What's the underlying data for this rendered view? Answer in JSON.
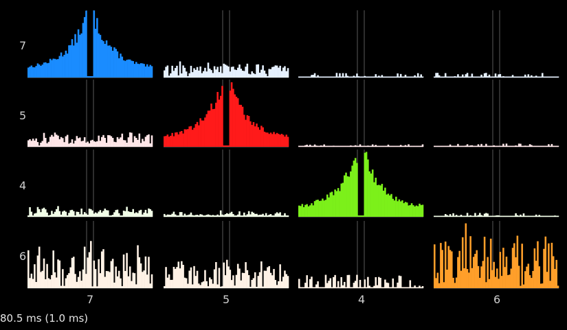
{
  "chart_data": {
    "type": "bar",
    "title": "",
    "units": [
      "7",
      "5",
      "4",
      "6"
    ],
    "colors": {
      "7_7": "#1a8cff",
      "5_5": "#ff1a1a",
      "4_4": "#7cf01a",
      "6_6": "#ff9f2a",
      "7_off": "#e6f1ff",
      "5_off": "#ffe6e8",
      "4_off": "#f2ffe8",
      "6_off": "#fff2e6"
    },
    "window": "80.5 ms (1.0 ms)",
    "bins_per_side": 40,
    "panels": [
      {
        "row": "7",
        "col": "7",
        "peak": 1.0,
        "shape": "peak",
        "noise": 0.15
      },
      {
        "row": "7",
        "col": "5",
        "peak": 0.25,
        "shape": "flat",
        "noise": 0.3
      },
      {
        "row": "7",
        "col": "4",
        "peak": 0.07,
        "shape": "sparse",
        "noise": 0.6
      },
      {
        "row": "7",
        "col": "6",
        "peak": 0.07,
        "shape": "sparse",
        "noise": 0.6
      },
      {
        "row": "5",
        "col": "7",
        "peak": 0.23,
        "shape": "flat",
        "noise": 0.35
      },
      {
        "row": "5",
        "col": "5",
        "peak": 1.0,
        "shape": "peak",
        "noise": 0.15
      },
      {
        "row": "5",
        "col": "4",
        "peak": 0.04,
        "shape": "sparse",
        "noise": 0.7
      },
      {
        "row": "5",
        "col": "6",
        "peak": 0.05,
        "shape": "sparse",
        "noise": 0.65
      },
      {
        "row": "4",
        "col": "7",
        "peak": 0.18,
        "shape": "flat",
        "noise": 0.55
      },
      {
        "row": "4",
        "col": "5",
        "peak": 0.1,
        "shape": "flat",
        "noise": 0.6
      },
      {
        "row": "4",
        "col": "4",
        "peak": 1.0,
        "shape": "peak",
        "noise": 0.18
      },
      {
        "row": "4",
        "col": "6",
        "peak": 0.06,
        "shape": "sparse",
        "noise": 0.7
      },
      {
        "row": "6",
        "col": "7",
        "peak": 0.75,
        "shape": "flat",
        "noise": 0.65
      },
      {
        "row": "6",
        "col": "5",
        "peak": 0.5,
        "shape": "flat",
        "noise": 0.6
      },
      {
        "row": "6",
        "col": "4",
        "peak": 0.2,
        "shape": "sparse",
        "noise": 0.65
      },
      {
        "row": "6",
        "col": "6",
        "peak": 1.0,
        "shape": "flat",
        "noise": 0.55
      }
    ]
  }
}
